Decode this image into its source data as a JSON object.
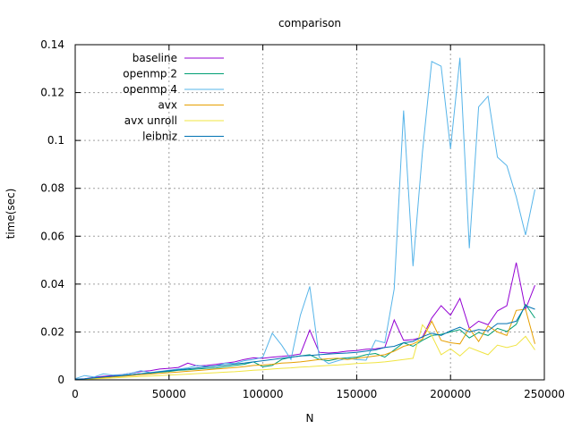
{
  "chart_data": {
    "type": "line",
    "title": "comparison",
    "xlabel": "N",
    "ylabel": "time(sec)",
    "xlim": [
      0,
      250000
    ],
    "ylim": [
      0,
      0.14
    ],
    "xticks": [
      0,
      50000,
      100000,
      150000,
      200000,
      250000
    ],
    "xtick_labels": [
      "0",
      "50000",
      "100000",
      "150000",
      "200000",
      "250000"
    ],
    "yticks": [
      0,
      0.02,
      0.04,
      0.06,
      0.08,
      0.1,
      0.12,
      0.14
    ],
    "ytick_labels": [
      "0",
      "0.02",
      "0.04",
      "0.06",
      "0.08",
      "0.1",
      "0.12",
      "0.14"
    ],
    "grid": true,
    "legend_position": "top-left",
    "x": [
      0,
      5000,
      10000,
      15000,
      20000,
      25000,
      30000,
      35000,
      40000,
      45000,
      50000,
      55000,
      60000,
      65000,
      70000,
      75000,
      80000,
      85000,
      90000,
      95000,
      100000,
      105000,
      110000,
      115000,
      120000,
      125000,
      130000,
      135000,
      140000,
      145000,
      150000,
      155000,
      160000,
      165000,
      170000,
      175000,
      180000,
      185000,
      190000,
      195000,
      200000,
      205000,
      210000,
      215000,
      220000,
      225000,
      230000,
      235000,
      240000,
      245000
    ],
    "series": [
      {
        "name": "baseline",
        "color": "#9400d3",
        "values": [
          0.0003,
          0.0005,
          0.001,
          0.0015,
          0.0018,
          0.0022,
          0.0028,
          0.0035,
          0.0038,
          0.0045,
          0.0048,
          0.0052,
          0.007,
          0.0058,
          0.006,
          0.0065,
          0.007,
          0.0075,
          0.0085,
          0.0092,
          0.009,
          0.0095,
          0.0098,
          0.0102,
          0.0108,
          0.0208,
          0.0115,
          0.0112,
          0.0115,
          0.012,
          0.0122,
          0.0128,
          0.013,
          0.0135,
          0.025,
          0.0165,
          0.0168,
          0.0178,
          0.0258,
          0.031,
          0.027,
          0.034,
          0.0215,
          0.0245,
          0.023,
          0.0288,
          0.031,
          0.049,
          0.0295,
          0.0395
        ]
      },
      {
        "name": "openmp 2",
        "color": "#009e73",
        "values": [
          0.0002,
          0.0004,
          0.0008,
          0.001,
          0.0014,
          0.0018,
          0.0022,
          0.0026,
          0.0028,
          0.0032,
          0.0035,
          0.004,
          0.0042,
          0.0045,
          0.0048,
          0.005,
          0.0055,
          0.006,
          0.0065,
          0.0075,
          0.0055,
          0.006,
          0.0085,
          0.0095,
          0.01,
          0.0105,
          0.0085,
          0.008,
          0.0088,
          0.0092,
          0.0095,
          0.0105,
          0.011,
          0.0095,
          0.0125,
          0.0155,
          0.014,
          0.0165,
          0.0185,
          0.019,
          0.02,
          0.021,
          0.0175,
          0.0198,
          0.0185,
          0.0215,
          0.0202,
          0.0232,
          0.0315,
          0.0258
        ]
      },
      {
        "name": "openmp 4",
        "color": "#56b4e9",
        "values": [
          0.0005,
          0.0018,
          0.0012,
          0.0025,
          0.002,
          0.0022,
          0.0028,
          0.0038,
          0.003,
          0.0035,
          0.004,
          0.0045,
          0.005,
          0.006,
          0.0055,
          0.0058,
          0.007,
          0.0068,
          0.008,
          0.0085,
          0.0095,
          0.0195,
          0.0145,
          0.0085,
          0.027,
          0.039,
          0.0095,
          0.0068,
          0.008,
          0.009,
          0.0085,
          0.0082,
          0.0165,
          0.0155,
          0.038,
          0.1125,
          0.0475,
          0.095,
          0.133,
          0.131,
          0.0965,
          0.1345,
          0.055,
          0.114,
          0.1185,
          0.093,
          0.0895,
          0.0765,
          0.0605,
          0.0795
        ]
      },
      {
        "name": "avx",
        "color": "#e69f00",
        "values": [
          0.0002,
          0.0003,
          0.0006,
          0.0009,
          0.0012,
          0.0015,
          0.0018,
          0.0021,
          0.0024,
          0.0027,
          0.003,
          0.0033,
          0.0036,
          0.0039,
          0.0042,
          0.0045,
          0.0048,
          0.0051,
          0.0055,
          0.006,
          0.0062,
          0.0065,
          0.007,
          0.0072,
          0.0075,
          0.008,
          0.0085,
          0.0088,
          0.009,
          0.0085,
          0.009,
          0.0095,
          0.01,
          0.0105,
          0.012,
          0.014,
          0.015,
          0.017,
          0.0245,
          0.0165,
          0.0155,
          0.015,
          0.0215,
          0.016,
          0.0225,
          0.02,
          0.0185,
          0.029,
          0.0295,
          0.015
        ]
      },
      {
        "name": "avx unroll",
        "color": "#f0e442",
        "values": [
          0.0001,
          0.0002,
          0.0004,
          0.0006,
          0.0008,
          0.001,
          0.0012,
          0.0014,
          0.0016,
          0.0018,
          0.002,
          0.0022,
          0.0024,
          0.0026,
          0.0028,
          0.003,
          0.0032,
          0.0034,
          0.0037,
          0.004,
          0.0042,
          0.0045,
          0.0048,
          0.005,
          0.0053,
          0.0055,
          0.0058,
          0.006,
          0.0062,
          0.0065,
          0.0068,
          0.007,
          0.0072,
          0.0075,
          0.008,
          0.0085,
          0.009,
          0.023,
          0.0185,
          0.0105,
          0.013,
          0.01,
          0.0135,
          0.012,
          0.0105,
          0.0145,
          0.0135,
          0.0145,
          0.0182,
          0.0125
        ]
      },
      {
        "name": "leibniz",
        "color": "#0072b2",
        "values": [
          0.0003,
          0.0004,
          0.0008,
          0.0012,
          0.0015,
          0.0018,
          0.0022,
          0.0026,
          0.003,
          0.0034,
          0.0038,
          0.0042,
          0.0046,
          0.005,
          0.0054,
          0.0058,
          0.0062,
          0.0066,
          0.007,
          0.0075,
          0.008,
          0.0085,
          0.009,
          0.0095,
          0.01,
          0.0102,
          0.0105,
          0.0108,
          0.011,
          0.0112,
          0.0115,
          0.012,
          0.0125,
          0.0135,
          0.014,
          0.0155,
          0.016,
          0.018,
          0.0195,
          0.0185,
          0.0205,
          0.022,
          0.02,
          0.021,
          0.0205,
          0.0235,
          0.0235,
          0.0245,
          0.031,
          0.0295
        ]
      }
    ]
  }
}
